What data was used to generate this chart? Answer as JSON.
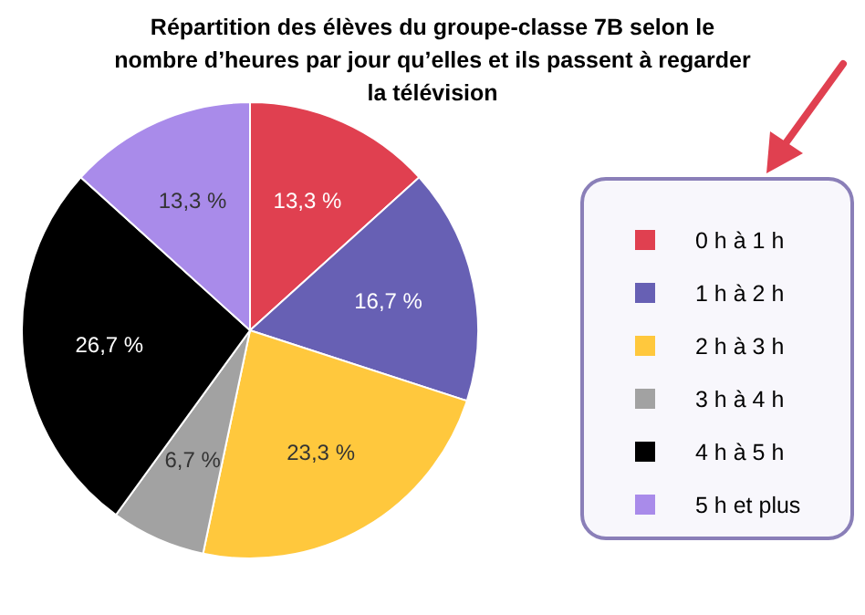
{
  "chart_data": {
    "type": "pie",
    "title": "Répartition des élèves du groupe-classe 7B selon le nombre d’heures par jour qu’elles et ils passent à regarder la télévision",
    "categories": [
      "0 h à 1 h",
      "1 h à 2 h",
      "2 h à 3 h",
      "3 h à 4 h",
      "4 h à 5 h",
      "5 h et plus"
    ],
    "values": [
      13.3,
      16.7,
      23.3,
      6.7,
      26.7,
      13.3
    ],
    "value_labels": [
      "13,3 %",
      "16,7 %",
      "23,3 %",
      "6,7 %",
      "26,7 %",
      "13,3 %"
    ],
    "colors": [
      "#e04050",
      "#6760b4",
      "#ffc83d",
      "#a2a2a2",
      "#000000",
      "#a98bea"
    ],
    "legend": "right"
  }
}
